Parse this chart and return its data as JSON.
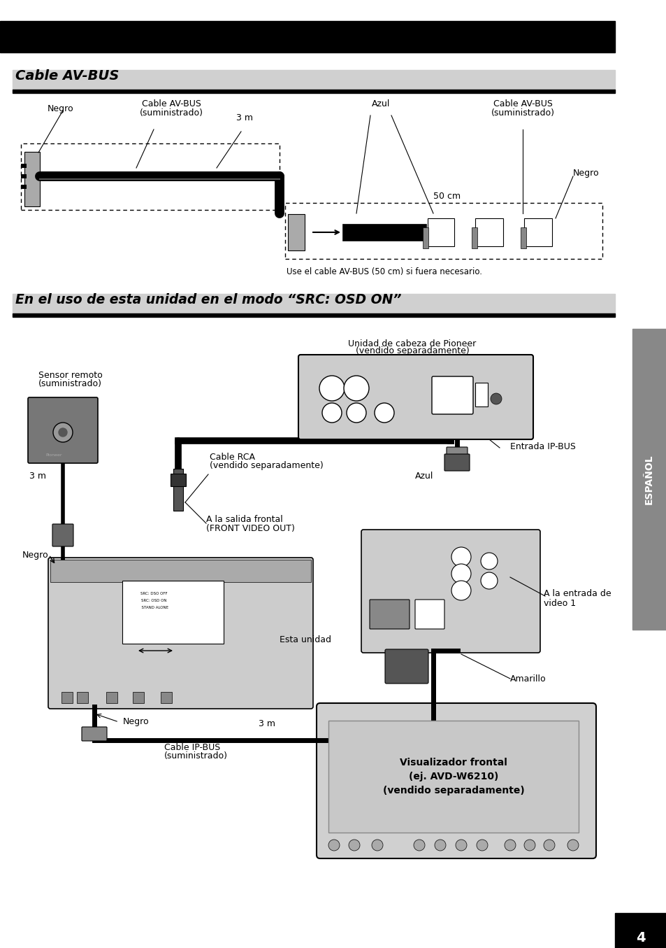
{
  "bg_color": "#ffffff",
  "black_bar_color": "#000000",
  "espanol_label": "ESPAÑOL",
  "page_number": "4",
  "section1_title": "Cable AV-BUS",
  "section2_title": "En el uso de esta unidad en el modo “SRC: OSD ON”",
  "footnote": "Use el cable AV-BUS (50 cm) si fuera necesario.",
  "label_negro1": "Negro",
  "label_cable_av_bus_left1": "Cable AV-BUS",
  "label_cable_av_bus_left2": "(suministrado)",
  "label_3m": "3 m",
  "label_azul_d1": "Azul",
  "label_cable_av_bus_right1": "Cable AV-BUS",
  "label_cable_av_bus_right2": "(suministrado)",
  "label_50cm": "50 cm",
  "label_negro2": "Negro",
  "label_sensor_remoto1": "Sensor remoto",
  "label_sensor_remoto2": "(suministrado)",
  "label_unidad_cabeza1": "Unidad de cabeza de Pioneer",
  "label_unidad_cabeza2": "(vendido separadamente)",
  "label_cable_rca1": "Cable RCA",
  "label_cable_rca2": "(vendido separadamente)",
  "label_azul_d2": "Azul",
  "label_entrada_ip_bus": "Entrada IP-BUS",
  "label_salida_frontal1": "A la salida frontal",
  "label_salida_frontal2": "(FRONT VIDEO OUT)",
  "label_esta_unidad": "Esta unidad",
  "label_negro_d2": "Negro",
  "label_negro_bottom": "Negro",
  "label_3m_bottom": "3 m",
  "label_cable_ip_bus1": "Cable IP-BUS",
  "label_cable_ip_bus2": "(suministrado)",
  "label_entrada_video1": "A la entrada de",
  "label_entrada_video2": "video 1",
  "label_amarillo": "Amarillo",
  "label_viz1": "Visualizador frontal",
  "label_viz2": "(ej. AVD-W6210)",
  "label_viz3": "(vendido separadamente)",
  "label_3m_d2": "3 m"
}
